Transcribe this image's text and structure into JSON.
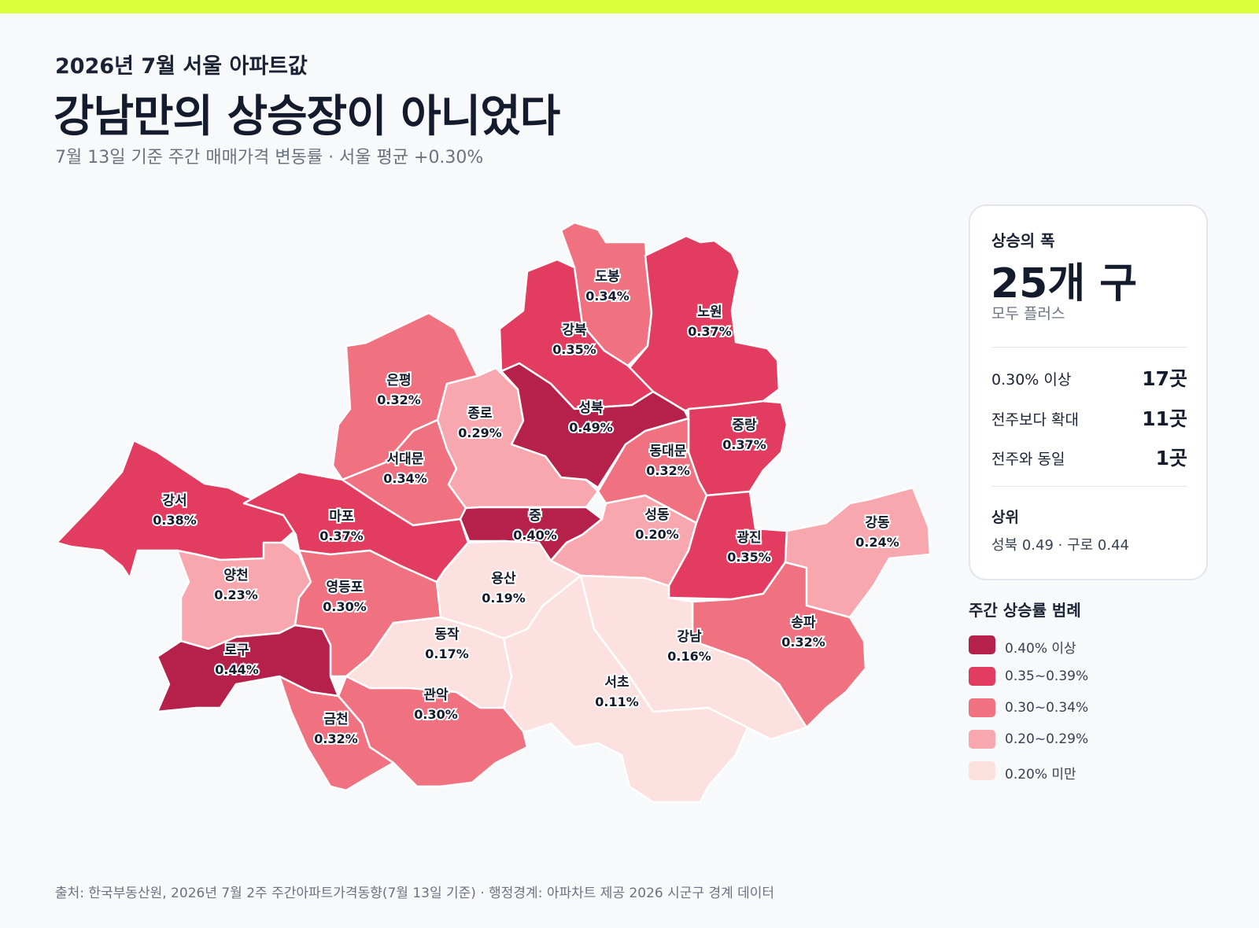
{
  "header": {
    "kicker": "2026년 7월 서울 아파트값",
    "headline": "강남만의 상승장이 아니었다",
    "subtitle": "7월 13일 기준 주간 매매가격 변동률 · 서울 평균 +0.30%"
  },
  "summary": {
    "label": "상승의 폭",
    "big": "25개 구",
    "sub": "모두 플러스",
    "stats": [
      {
        "label": "0.30% 이상",
        "value": "17곳"
      },
      {
        "label": "전주보다 확대",
        "value": "11곳"
      },
      {
        "label": "전주와 동일",
        "value": "1곳"
      }
    ],
    "top_label": "상위",
    "top_value": "성북 0.49 · 구로 0.44"
  },
  "legend": {
    "title": "주간 상승률 범례",
    "items": [
      {
        "label": "0.40% 이상",
        "color": "#b5214a"
      },
      {
        "label": "0.35~0.39%",
        "color": "#e23d60"
      },
      {
        "label": "0.30~0.34%",
        "color": "#f07281"
      },
      {
        "label": "0.20~0.29%",
        "color": "#f8a7ae"
      },
      {
        "label": "0.20% 미만",
        "color": "#fde0e0"
      }
    ]
  },
  "districts": [
    {
      "name": "도봉",
      "value": "0.34%"
    },
    {
      "name": "노원",
      "value": "0.37%"
    },
    {
      "name": "강북",
      "value": "0.35%"
    },
    {
      "name": "은평",
      "value": "0.32%"
    },
    {
      "name": "종로",
      "value": "0.29%"
    },
    {
      "name": "성북",
      "value": "0.49%"
    },
    {
      "name": "중랑",
      "value": "0.37%"
    },
    {
      "name": "동대문",
      "value": "0.32%"
    },
    {
      "name": "서대문",
      "value": "0.34%"
    },
    {
      "name": "강서",
      "value": "0.38%"
    },
    {
      "name": "마포",
      "value": "0.37%"
    },
    {
      "name": "중",
      "value": "0.40%"
    },
    {
      "name": "성동",
      "value": "0.20%"
    },
    {
      "name": "광진",
      "value": "0.35%"
    },
    {
      "name": "강동",
      "value": "0.24%"
    },
    {
      "name": "양천",
      "value": "0.23%"
    },
    {
      "name": "용산",
      "value": "0.19%"
    },
    {
      "name": "영등포",
      "value": "0.30%"
    },
    {
      "name": "송파",
      "value": "0.32%"
    },
    {
      "name": "로구",
      "value": "0.44%"
    },
    {
      "name": "동작",
      "value": "0.17%"
    },
    {
      "name": "강남",
      "value": "0.16%"
    },
    {
      "name": "관악",
      "value": "0.30%"
    },
    {
      "name": "서초",
      "value": "0.11%"
    },
    {
      "name": "금천",
      "value": "0.32%"
    }
  ],
  "footer": {
    "source": "출처: 한국부동산원, 2026년 7월 2주 주간아파트가격동향(7월 13일 기준) · 행정경계: 아파차트 제공 2026 시군구 경계 데이터"
  }
}
